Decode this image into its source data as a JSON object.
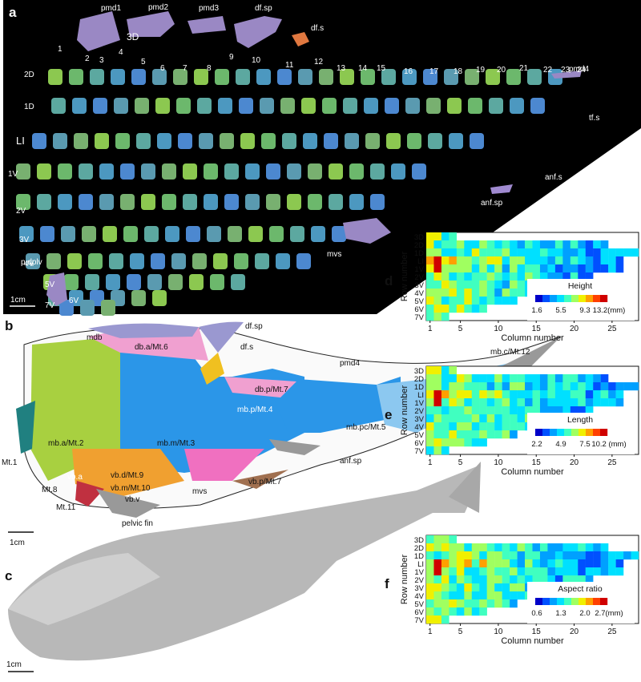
{
  "panel_a": {
    "letter": "a",
    "top_labels": [
      "pmd1",
      "pmd2",
      "pmd3",
      "df.sp",
      "df.s",
      "3D"
    ],
    "column_numbers": [
      "1",
      "2",
      "3",
      "4",
      "5",
      "6",
      "7",
      "8",
      "9",
      "10",
      "11",
      "12",
      "13",
      "14",
      "15",
      "16",
      "17",
      "18",
      "19",
      "20",
      "21",
      "22",
      "23",
      "24"
    ],
    "row_labels": [
      "2D",
      "1D",
      "LI",
      "1V",
      "2V",
      "3V",
      "4V",
      "5V",
      "6V",
      "7V"
    ],
    "side_labels": [
      "pmd4",
      "tf.s",
      "anf.s",
      "anf.sp",
      "mvs",
      "p.dplv"
    ],
    "scale": "1cm"
  },
  "panel_b": {
    "letter": "b",
    "labels": [
      "mdb",
      "db.a/Mt.6",
      "df.sp",
      "df.s",
      "pmd4",
      "mb.c/Mt.12",
      "db.p/Mt.7",
      "mb.p/Mt.4",
      "mb.pc/Mt.5",
      "mb.a/Mt.2",
      "mb.m/Mt.3",
      "Mt.1",
      "anf.sp",
      "vb.p/Mt.7",
      "vb.d/Mt.9",
      "vb.m/Mt.10",
      "vb.v",
      "mvs",
      "Mt.8",
      "vb.a",
      "Mt.11",
      "pelvic fin"
    ],
    "scale": "1cm"
  },
  "panel_c": {
    "letter": "c",
    "scale": "1cm"
  },
  "heatmaps": {
    "row_labels": [
      "3D",
      "2D",
      "1D",
      "LI",
      "1V",
      "2V",
      "3V",
      "4V",
      "5V",
      "6V",
      "7V"
    ],
    "x_ticks": [
      "1",
      "5",
      "10",
      "15",
      "20",
      "25"
    ],
    "xlabel": "Column number",
    "ylabel": "Row number",
    "colors": [
      "#0000c8",
      "#0050ff",
      "#00a0ff",
      "#00e0ff",
      "#40ffc0",
      "#a0ff60",
      "#f0f000",
      "#ffa000",
      "#ff4000",
      "#d00000"
    ],
    "panels": [
      {
        "letter": "d",
        "title": "Height",
        "ticks": [
          "1.6",
          "5.5",
          "9.3",
          "13.2(mm)"
        ]
      },
      {
        "letter": "e",
        "title": "Length",
        "ticks": [
          "2.2",
          "4.9",
          "7.5",
          "10.2 (mm)"
        ]
      },
      {
        "letter": "f",
        "title": "Aspect ratio",
        "ticks": [
          "0.6",
          "1.3",
          "2.0",
          "2.7(mm)"
        ]
      }
    ]
  }
}
